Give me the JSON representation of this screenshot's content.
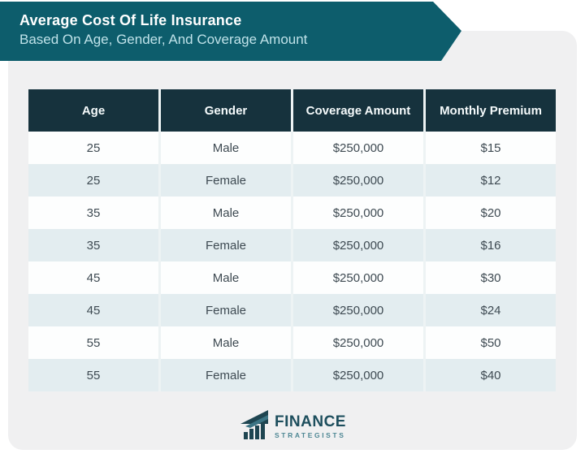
{
  "banner": {
    "title": "Average Cost Of Life Insurance",
    "subtitle": "Based On Age, Gender, And Coverage Amount",
    "bg_color": "#0d5d6c",
    "subtitle_color": "#bfe2e9"
  },
  "table": {
    "headers": [
      "Age",
      "Gender",
      "Coverage Amount",
      "Monthly Premium"
    ],
    "rows": [
      [
        "25",
        "Male",
        "$250,000",
        "$15"
      ],
      [
        "25",
        "Female",
        "$250,000",
        "$12"
      ],
      [
        "35",
        "Male",
        "$250,000",
        "$20"
      ],
      [
        "35",
        "Female",
        "$250,000",
        "$16"
      ],
      [
        "45",
        "Male",
        "$250,000",
        "$30"
      ],
      [
        "45",
        "Female",
        "$250,000",
        "$24"
      ],
      [
        "55",
        "Male",
        "$250,000",
        "$50"
      ],
      [
        "55",
        "Female",
        "$250,000",
        "$40"
      ]
    ],
    "header_bg": "#16323d",
    "row_alt_bg": "#e3edf0"
  },
  "footer": {
    "brand_line1": "FINANCE",
    "brand_line2": "STRATEGISTS",
    "brand_color": "#1d4e5d"
  },
  "chart_data": {
    "type": "table",
    "title": "Average Cost Of Life Insurance Based On Age, Gender, And Coverage Amount",
    "columns": [
      "Age",
      "Gender",
      "Coverage Amount",
      "Monthly Premium"
    ],
    "rows": [
      {
        "age": 25,
        "gender": "Male",
        "coverage_amount": "$250,000",
        "monthly_premium": "$15"
      },
      {
        "age": 25,
        "gender": "Female",
        "coverage_amount": "$250,000",
        "monthly_premium": "$12"
      },
      {
        "age": 35,
        "gender": "Male",
        "coverage_amount": "$250,000",
        "monthly_premium": "$20"
      },
      {
        "age": 35,
        "gender": "Female",
        "coverage_amount": "$250,000",
        "monthly_premium": "$16"
      },
      {
        "age": 45,
        "gender": "Male",
        "coverage_amount": "$250,000",
        "monthly_premium": "$30"
      },
      {
        "age": 45,
        "gender": "Female",
        "coverage_amount": "$250,000",
        "monthly_premium": "$24"
      },
      {
        "age": 55,
        "gender": "Male",
        "coverage_amount": "$250,000",
        "monthly_premium": "$50"
      },
      {
        "age": 55,
        "gender": "Female",
        "coverage_amount": "$250,000",
        "monthly_premium": "$40"
      }
    ]
  }
}
